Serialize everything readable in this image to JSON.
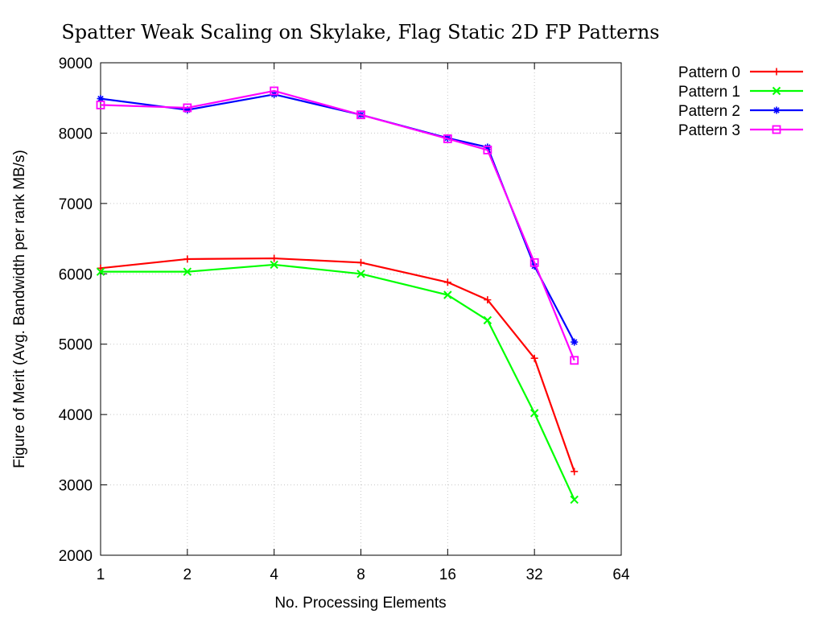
{
  "chart_data": {
    "type": "line",
    "title": "Spatter Weak Scaling on Skylake, Flag Static 2D FP Patterns",
    "xlabel": "No. Processing Elements",
    "ylabel": "Figure of Merit (Avg. Bandwidth per rank MB/s)",
    "xscale": "log2",
    "xlim": [
      1,
      64
    ],
    "ylim": [
      2000,
      9000
    ],
    "xticks": [
      1,
      2,
      4,
      8,
      16,
      32,
      64
    ],
    "yticks": [
      2000,
      3000,
      4000,
      5000,
      6000,
      7000,
      8000,
      9000
    ],
    "grid": true,
    "legend_position": "outside-top-right",
    "x": [
      1,
      2,
      4,
      8,
      16,
      22,
      32,
      44
    ],
    "series": [
      {
        "name": "Pattern 0",
        "color": "#ff0000",
        "marker": "plus",
        "values": [
          6080,
          6210,
          6220,
          6160,
          5880,
          5630,
          4800,
          3190
        ]
      },
      {
        "name": "Pattern 1",
        "color": "#00ff00",
        "marker": "cross",
        "values": [
          6030,
          6030,
          6130,
          6000,
          5700,
          5340,
          4020,
          2790
        ]
      },
      {
        "name": "Pattern 2",
        "color": "#0000ff",
        "marker": "asterisk",
        "values": [
          8490,
          8330,
          8550,
          8260,
          7930,
          7800,
          6110,
          5030
        ]
      },
      {
        "name": "Pattern 3",
        "color": "#ff00ff",
        "marker": "square",
        "values": [
          8400,
          8360,
          8600,
          8260,
          7920,
          7760,
          6160,
          4770
        ]
      }
    ]
  }
}
